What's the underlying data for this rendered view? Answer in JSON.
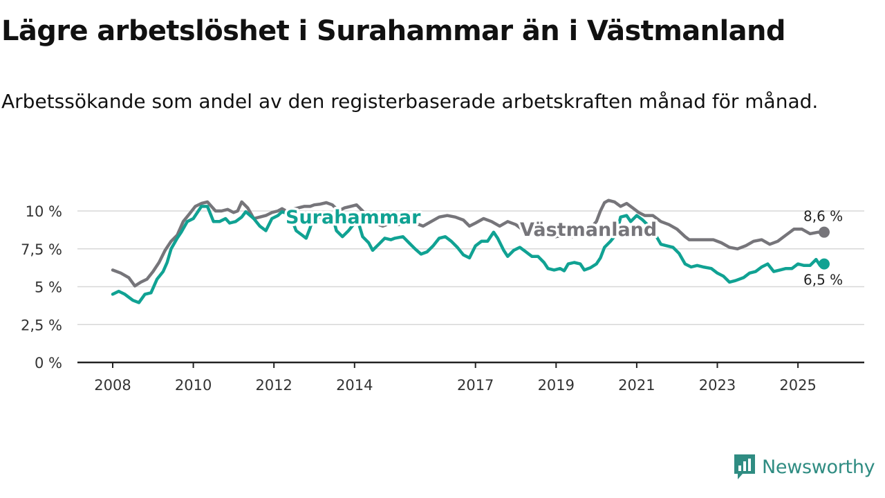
{
  "title": "Lägre arbetslöshet i Surahammar än i Västmanland",
  "subtitle": "Arbetssökande som andel av den registerbaserade arbetskraften månad för månad.",
  "brand": {
    "name": "Newsworthy",
    "icon": "chart-logo-icon"
  },
  "chart_data": {
    "type": "line",
    "title": "Lägre arbetslöshet i Surahammar än i Västmanland",
    "xlabel": "",
    "ylabel": "",
    "xlim": [
      2008.0,
      2026.0
    ],
    "ylim": [
      0,
      10
    ],
    "x_ticks": [
      2008,
      2010,
      2012,
      2014,
      2017,
      2019,
      2021,
      2023,
      2025
    ],
    "x_tick_labels": [
      "2008",
      "2010",
      "2012",
      "2014",
      "2017",
      "2019",
      "2021",
      "2023",
      "2025"
    ],
    "y_ticks": [
      0,
      2.5,
      5,
      7.5,
      10
    ],
    "y_tick_labels": [
      "0 %",
      "2,5 %",
      "5 %",
      "7,5 %",
      "10 %"
    ],
    "grid": true,
    "colors": {
      "Västmanland": "#76757a",
      "Surahammar": "#10a293",
      "grid": "#d7d7d7",
      "axis": "#222222"
    },
    "end_labels": {
      "Västmanland": "8,6 %",
      "Surahammar": "6,5 %"
    },
    "series": [
      {
        "name": "Västmanland",
        "label": "Västmanland",
        "points": [
          [
            2008.0,
            6.1
          ],
          [
            2008.2,
            5.9
          ],
          [
            2008.4,
            5.6
          ],
          [
            2008.55,
            5.05
          ],
          [
            2008.7,
            5.3
          ],
          [
            2008.85,
            5.5
          ],
          [
            2009.0,
            6.0
          ],
          [
            2009.15,
            6.6
          ],
          [
            2009.3,
            7.4
          ],
          [
            2009.45,
            8.0
          ],
          [
            2009.6,
            8.4
          ],
          [
            2009.75,
            9.3
          ],
          [
            2009.9,
            9.8
          ],
          [
            2010.05,
            10.3
          ],
          [
            2010.2,
            10.5
          ],
          [
            2010.35,
            10.6
          ],
          [
            2010.45,
            10.3
          ],
          [
            2010.55,
            10.0
          ],
          [
            2010.7,
            10.0
          ],
          [
            2010.85,
            10.1
          ],
          [
            2011.0,
            9.9
          ],
          [
            2011.1,
            10.0
          ],
          [
            2011.2,
            10.6
          ],
          [
            2011.35,
            10.2
          ],
          [
            2011.5,
            9.5
          ],
          [
            2011.65,
            9.6
          ],
          [
            2011.8,
            9.7
          ],
          [
            2011.95,
            9.9
          ],
          [
            2012.1,
            10.0
          ],
          [
            2012.2,
            10.15
          ],
          [
            2012.3,
            10.0
          ],
          [
            2012.45,
            10.1
          ],
          [
            2012.6,
            10.2
          ],
          [
            2012.75,
            10.3
          ],
          [
            2012.9,
            10.3
          ],
          [
            2013.0,
            10.4
          ],
          [
            2013.15,
            10.45
          ],
          [
            2013.3,
            10.55
          ],
          [
            2013.45,
            10.4
          ],
          [
            2013.6,
            10.0
          ],
          [
            2013.75,
            10.2
          ],
          [
            2013.9,
            10.3
          ],
          [
            2014.05,
            10.4
          ],
          [
            2014.2,
            10.0
          ],
          [
            2014.35,
            9.5
          ],
          [
            2014.5,
            9.2
          ],
          [
            2014.7,
            9.0
          ],
          [
            2014.9,
            9.2
          ],
          [
            2015.1,
            9.1
          ],
          [
            2015.3,
            9.3
          ],
          [
            2015.5,
            9.2
          ],
          [
            2015.7,
            9.0
          ],
          [
            2015.9,
            9.3
          ],
          [
            2016.1,
            9.6
          ],
          [
            2016.3,
            9.7
          ],
          [
            2016.5,
            9.6
          ],
          [
            2016.7,
            9.4
          ],
          [
            2016.85,
            9.0
          ],
          [
            2017.0,
            9.2
          ],
          [
            2017.2,
            9.5
          ],
          [
            2017.4,
            9.3
          ],
          [
            2017.6,
            9.0
          ],
          [
            2017.8,
            9.3
          ],
          [
            2018.0,
            9.1
          ],
          [
            2018.2,
            8.7
          ],
          [
            2018.4,
            8.5
          ],
          [
            2018.6,
            8.5
          ],
          [
            2018.8,
            8.35
          ],
          [
            2019.0,
            8.3
          ],
          [
            2019.2,
            8.4
          ],
          [
            2019.4,
            8.3
          ],
          [
            2019.6,
            8.5
          ],
          [
            2019.8,
            8.7
          ],
          [
            2020.0,
            9.3
          ],
          [
            2020.1,
            10.0
          ],
          [
            2020.2,
            10.55
          ],
          [
            2020.3,
            10.7
          ],
          [
            2020.45,
            10.6
          ],
          [
            2020.6,
            10.3
          ],
          [
            2020.75,
            10.5
          ],
          [
            2020.9,
            10.2
          ],
          [
            2021.05,
            9.9
          ],
          [
            2021.2,
            9.7
          ],
          [
            2021.4,
            9.7
          ],
          [
            2021.6,
            9.3
          ],
          [
            2021.8,
            9.1
          ],
          [
            2022.0,
            8.8
          ],
          [
            2022.2,
            8.3
          ],
          [
            2022.3,
            8.1
          ],
          [
            2022.6,
            8.1
          ],
          [
            2022.9,
            8.1
          ],
          [
            2023.1,
            7.9
          ],
          [
            2023.3,
            7.6
          ],
          [
            2023.5,
            7.5
          ],
          [
            2023.7,
            7.7
          ],
          [
            2023.9,
            8.0
          ],
          [
            2024.1,
            8.1
          ],
          [
            2024.3,
            7.8
          ],
          [
            2024.5,
            8.0
          ],
          [
            2024.7,
            8.4
          ],
          [
            2024.9,
            8.8
          ],
          [
            2025.1,
            8.8
          ],
          [
            2025.3,
            8.5
          ],
          [
            2025.5,
            8.6
          ],
          [
            2025.65,
            8.6
          ]
        ]
      },
      {
        "name": "Surahammar",
        "label": "Surahammar",
        "points": [
          [
            2008.0,
            4.5
          ],
          [
            2008.15,
            4.7
          ],
          [
            2008.3,
            4.5
          ],
          [
            2008.5,
            4.1
          ],
          [
            2008.65,
            3.95
          ],
          [
            2008.8,
            4.5
          ],
          [
            2008.95,
            4.6
          ],
          [
            2009.1,
            5.5
          ],
          [
            2009.25,
            6.0
          ],
          [
            2009.35,
            6.6
          ],
          [
            2009.45,
            7.5
          ],
          [
            2009.6,
            8.2
          ],
          [
            2009.7,
            8.6
          ],
          [
            2009.85,
            9.3
          ],
          [
            2010.0,
            9.5
          ],
          [
            2010.1,
            9.9
          ],
          [
            2010.2,
            10.3
          ],
          [
            2010.35,
            10.3
          ],
          [
            2010.5,
            9.3
          ],
          [
            2010.65,
            9.3
          ],
          [
            2010.8,
            9.5
          ],
          [
            2010.9,
            9.2
          ],
          [
            2011.05,
            9.3
          ],
          [
            2011.2,
            9.6
          ],
          [
            2011.3,
            9.95
          ],
          [
            2011.5,
            9.5
          ],
          [
            2011.65,
            9.0
          ],
          [
            2011.8,
            8.7
          ],
          [
            2011.95,
            9.5
          ],
          [
            2012.1,
            9.7
          ],
          [
            2012.2,
            9.95
          ],
          [
            2012.3,
            9.85
          ],
          [
            2012.45,
            9.4
          ],
          [
            2012.55,
            8.7
          ],
          [
            2012.7,
            8.4
          ],
          [
            2012.8,
            8.2
          ],
          [
            2012.9,
            8.9
          ],
          [
            2013.0,
            9.9
          ],
          [
            2013.15,
            9.6
          ],
          [
            2013.3,
            9.2
          ],
          [
            2013.45,
            9.7
          ],
          [
            2013.55,
            8.7
          ],
          [
            2013.7,
            8.3
          ],
          [
            2013.85,
            8.7
          ],
          [
            2014.0,
            9.2
          ],
          [
            2014.1,
            9.2
          ],
          [
            2014.2,
            8.3
          ],
          [
            2014.35,
            7.9
          ],
          [
            2014.45,
            7.4
          ],
          [
            2014.6,
            7.8
          ],
          [
            2014.75,
            8.2
          ],
          [
            2014.9,
            8.1
          ],
          [
            2015.0,
            8.2
          ],
          [
            2015.2,
            8.3
          ],
          [
            2015.35,
            7.9
          ],
          [
            2015.5,
            7.5
          ],
          [
            2015.65,
            7.15
          ],
          [
            2015.8,
            7.3
          ],
          [
            2015.95,
            7.7
          ],
          [
            2016.1,
            8.2
          ],
          [
            2016.25,
            8.3
          ],
          [
            2016.4,
            8.0
          ],
          [
            2016.55,
            7.6
          ],
          [
            2016.7,
            7.1
          ],
          [
            2016.85,
            6.9
          ],
          [
            2017.0,
            7.7
          ],
          [
            2017.15,
            8.0
          ],
          [
            2017.3,
            8.0
          ],
          [
            2017.45,
            8.6
          ],
          [
            2017.55,
            8.2
          ],
          [
            2017.7,
            7.4
          ],
          [
            2017.8,
            7.0
          ],
          [
            2017.95,
            7.4
          ],
          [
            2018.1,
            7.6
          ],
          [
            2018.25,
            7.3
          ],
          [
            2018.4,
            7.0
          ],
          [
            2018.55,
            7.0
          ],
          [
            2018.7,
            6.6
          ],
          [
            2018.8,
            6.2
          ],
          [
            2018.95,
            6.1
          ],
          [
            2019.1,
            6.2
          ],
          [
            2019.2,
            6.05
          ],
          [
            2019.3,
            6.5
          ],
          [
            2019.45,
            6.6
          ],
          [
            2019.6,
            6.5
          ],
          [
            2019.7,
            6.1
          ],
          [
            2019.85,
            6.25
          ],
          [
            2020.0,
            6.5
          ],
          [
            2020.1,
            6.9
          ],
          [
            2020.2,
            7.6
          ],
          [
            2020.35,
            8.0
          ],
          [
            2020.5,
            8.5
          ],
          [
            2020.6,
            9.6
          ],
          [
            2020.75,
            9.7
          ],
          [
            2020.85,
            9.3
          ],
          [
            2021.0,
            9.7
          ],
          [
            2021.15,
            9.4
          ],
          [
            2021.3,
            9.0
          ],
          [
            2021.45,
            8.5
          ],
          [
            2021.6,
            7.8
          ],
          [
            2021.75,
            7.7
          ],
          [
            2021.9,
            7.6
          ],
          [
            2022.05,
            7.2
          ],
          [
            2022.2,
            6.5
          ],
          [
            2022.35,
            6.3
          ],
          [
            2022.5,
            6.4
          ],
          [
            2022.65,
            6.3
          ],
          [
            2022.85,
            6.2
          ],
          [
            2023.0,
            5.9
          ],
          [
            2023.15,
            5.7
          ],
          [
            2023.3,
            5.3
          ],
          [
            2023.45,
            5.4
          ],
          [
            2023.65,
            5.6
          ],
          [
            2023.8,
            5.9
          ],
          [
            2023.95,
            6.0
          ],
          [
            2024.1,
            6.3
          ],
          [
            2024.25,
            6.5
          ],
          [
            2024.4,
            6.0
          ],
          [
            2024.55,
            6.1
          ],
          [
            2024.7,
            6.2
          ],
          [
            2024.85,
            6.2
          ],
          [
            2025.0,
            6.5
          ],
          [
            2025.15,
            6.4
          ],
          [
            2025.3,
            6.4
          ],
          [
            2025.45,
            6.8
          ],
          [
            2025.55,
            6.4
          ],
          [
            2025.65,
            6.5
          ]
        ]
      }
    ]
  }
}
